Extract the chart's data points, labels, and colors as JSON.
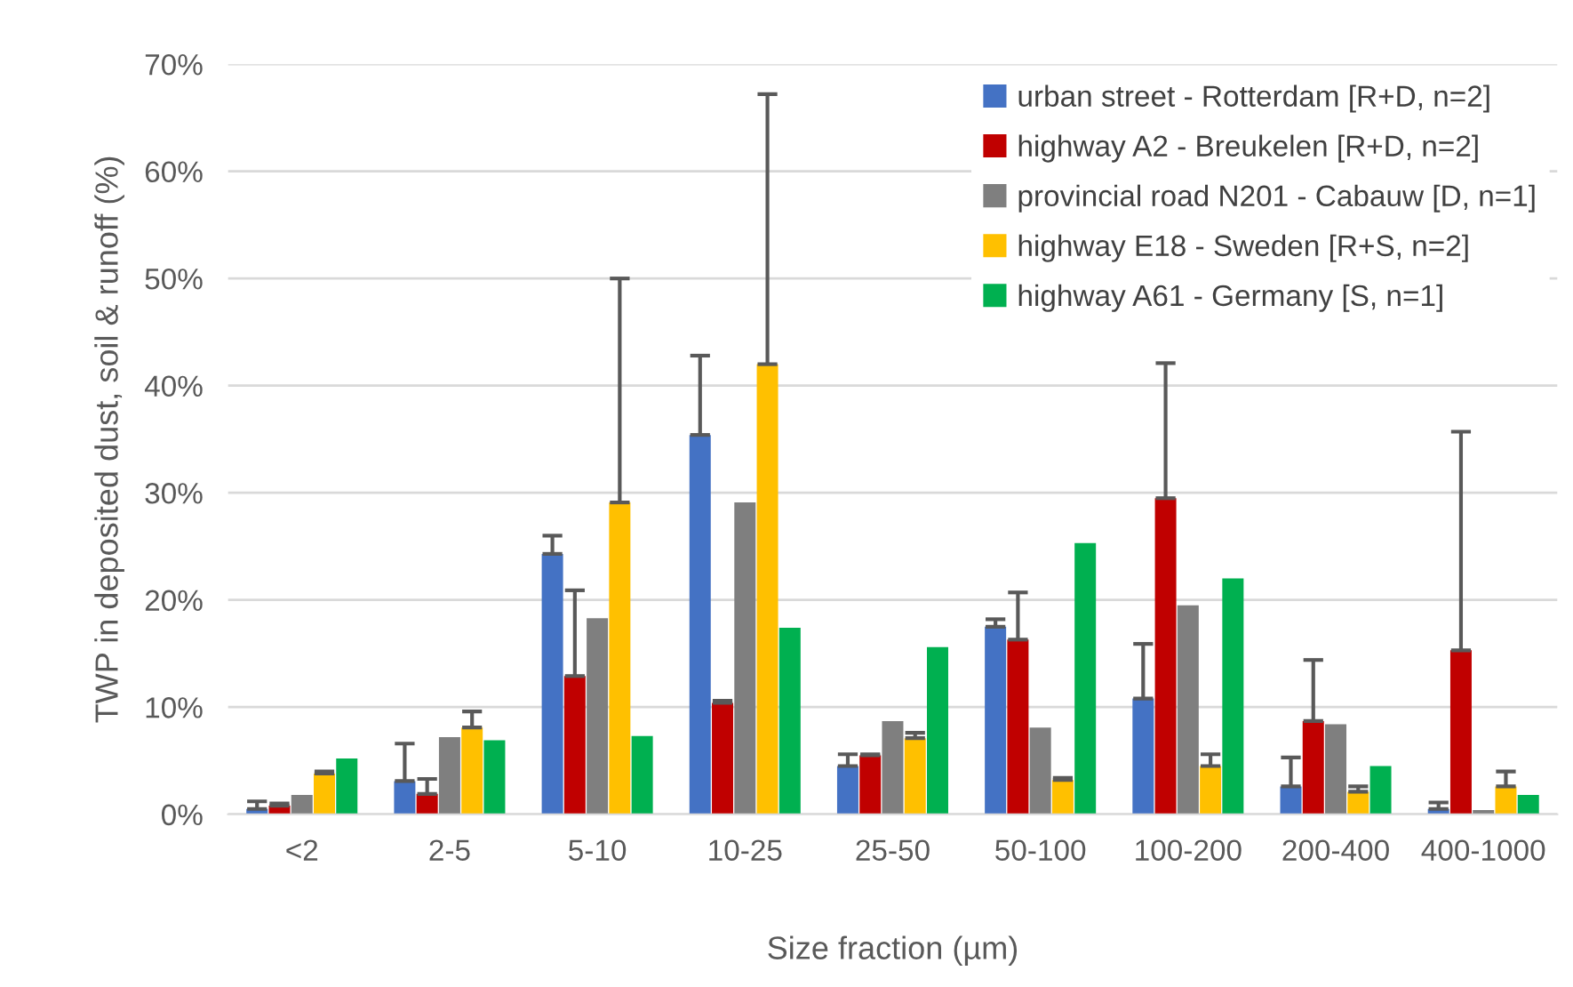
{
  "chart_data": {
    "type": "bar",
    "xlabel": "Size fraction (µm)",
    "ylabel": "TWP in deposited dust, soil & runoff (%)",
    "categories": [
      "<2",
      "2-5",
      "5-10",
      "10-25",
      "25-50",
      "50-100",
      "100-200",
      "200-400",
      "400-1000"
    ],
    "series": [
      {
        "name": "urban street - Rotterdam [R+D, n=2]",
        "color": "#4472c4",
        "values": [
          0.5,
          3.1,
          24.3,
          35.4,
          4.5,
          17.5,
          10.8,
          2.6,
          0.5
        ],
        "errors": [
          [
            0.5,
            1.2
          ],
          [
            3.1,
            6.6
          ],
          [
            24.3,
            26.0
          ],
          [
            35.4,
            42.8
          ],
          [
            4.5,
            5.6
          ],
          [
            17.5,
            18.2
          ],
          [
            10.8,
            15.9
          ],
          [
            2.6,
            5.3
          ],
          [
            0.5,
            1.1
          ]
        ]
      },
      {
        "name": "highway A2 - Breukelen [R+D, n=2]",
        "color": "#c00000",
        "values": [
          0.8,
          1.9,
          12.9,
          10.4,
          5.5,
          16.3,
          29.5,
          8.7,
          15.3
        ],
        "errors": [
          [
            0.8,
            1.0
          ],
          [
            1.9,
            3.3
          ],
          [
            12.9,
            20.9
          ],
          [
            10.4,
            10.6
          ],
          [
            5.5,
            5.6
          ],
          [
            16.3,
            20.7
          ],
          [
            29.5,
            42.1
          ],
          [
            8.7,
            14.4
          ],
          [
            15.3,
            35.7
          ]
        ]
      },
      {
        "name": "provincial road N201 - Cabauw [D, n=1]",
        "color": "#7f7f7f",
        "values": [
          1.8,
          7.2,
          18.3,
          29.1,
          8.7,
          8.1,
          19.5,
          8.4,
          0.4
        ]
      },
      {
        "name": "highway E18 - Sweden [R+S, n=2]",
        "color": "#ffc000",
        "values": [
          3.8,
          8.1,
          29.1,
          42.0,
          7.1,
          3.2,
          4.5,
          2.1,
          2.6
        ],
        "errors": [
          [
            3.8,
            4.0
          ],
          [
            8.1,
            9.6
          ],
          [
            29.1,
            50.0
          ],
          [
            42.0,
            67.2
          ],
          [
            7.1,
            7.6
          ],
          [
            3.2,
            3.4
          ],
          [
            4.5,
            5.6
          ],
          [
            2.1,
            2.6
          ],
          [
            2.6,
            4.0
          ]
        ]
      },
      {
        "name": "highway A61 - Germany [S, n=1]",
        "color": "#00b050",
        "values": [
          5.2,
          6.9,
          7.3,
          17.4,
          15.6,
          25.3,
          22.0,
          4.5,
          1.8
        ]
      }
    ],
    "ylim": [
      0,
      70
    ],
    "yticks": [
      {
        "value": 0,
        "label": "0%"
      },
      {
        "value": 10,
        "label": "10%"
      },
      {
        "value": 20,
        "label": "20%"
      },
      {
        "value": 30,
        "label": "30%"
      },
      {
        "value": 40,
        "label": "40%"
      },
      {
        "value": 50,
        "label": "50%"
      },
      {
        "value": 60,
        "label": "60%"
      },
      {
        "value": 70,
        "label": "70%"
      }
    ],
    "grid": "y",
    "legend": "top right"
  }
}
